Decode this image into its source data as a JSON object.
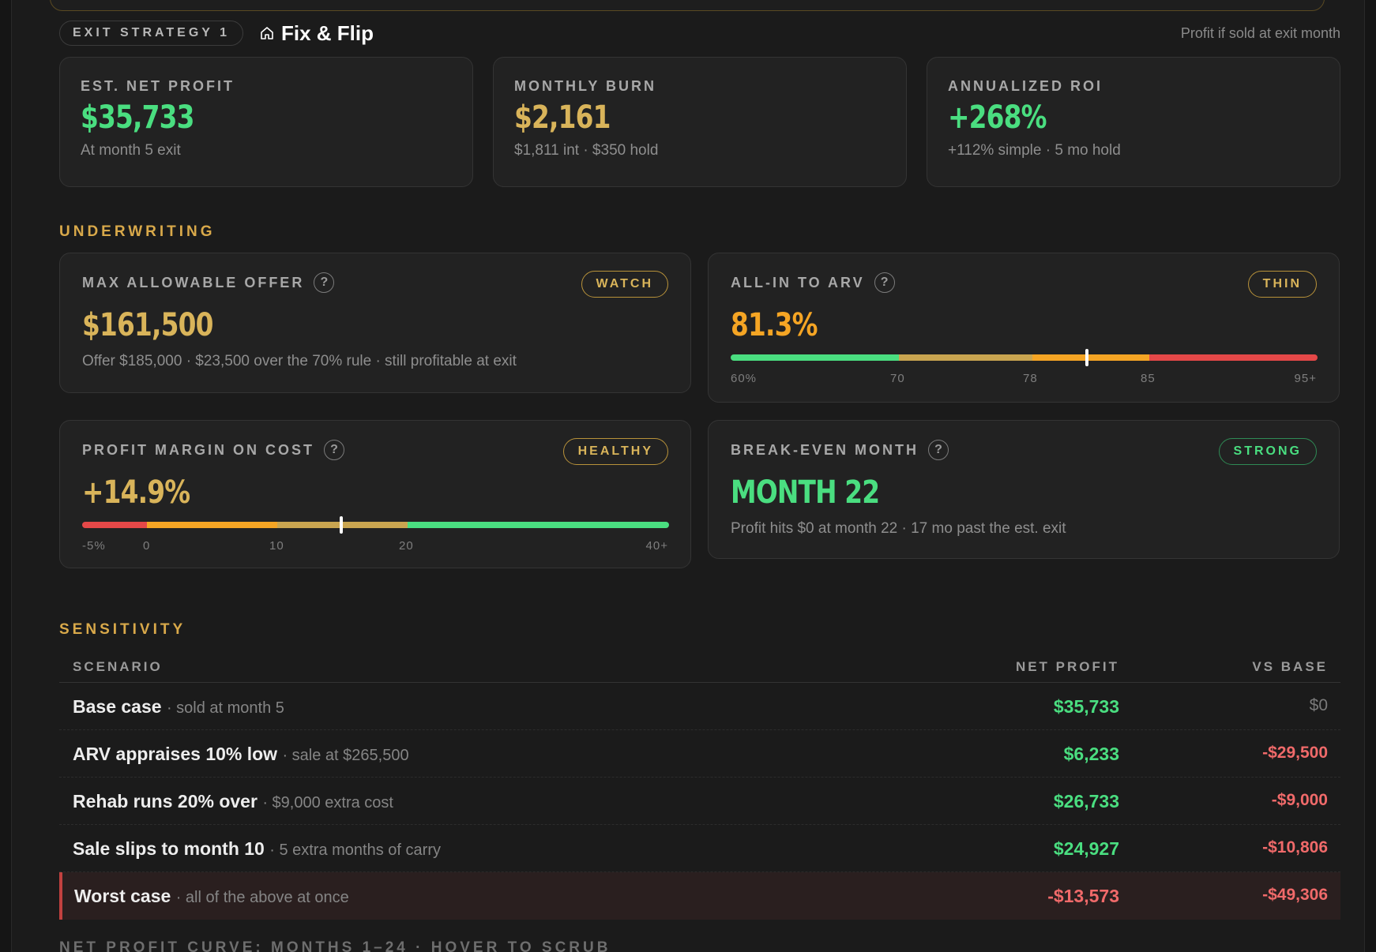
{
  "exit": {
    "pill": "EXIT STRATEGY 1",
    "title": "Fix & Flip",
    "note": "Profit if sold at exit month"
  },
  "stats": [
    {
      "label": "EST. NET PROFIT",
      "value": "$35,733",
      "sub": "At month 5 exit",
      "color": "#4ade80"
    },
    {
      "label": "MONTHLY BURN",
      "value": "$2,161",
      "sub": "$1,811 int · $350 hold",
      "color": "#d9b45a"
    },
    {
      "label": "ANNUALIZED ROI",
      "value": "+268%",
      "sub": "+112% simple · 5 mo hold",
      "color": "#4ade80"
    }
  ],
  "underwriting": {
    "title": "UNDERWRITING",
    "mao": {
      "label": "MAX ALLOWABLE OFFER",
      "badge": "WATCH",
      "value": "$161,500",
      "sub": "Offer $185,000 · $23,500 over the 70% rule · still profitable at exit"
    },
    "allin": {
      "label": "ALL-IN TO ARV",
      "badge": "THIN",
      "value": "81.3%",
      "gauge_value": 81.3,
      "ticks": [
        "60%",
        "70",
        "78",
        "85",
        "95+"
      ]
    },
    "margin": {
      "label": "PROFIT MARGIN ON COST",
      "badge": "HEALTHY",
      "value": "+14.9%",
      "gauge_value": 14.9,
      "ticks": [
        "-5%",
        "0",
        "10",
        "20",
        "40+"
      ]
    },
    "breakeven": {
      "label": "BREAK-EVEN MONTH",
      "badge": "STRONG",
      "value": "MONTH 22",
      "sub": "Profit hits $0 at month 22 · 17 mo past the est. exit"
    }
  },
  "sensitivity": {
    "title": "SENSITIVITY",
    "headers": {
      "scenario": "SCENARIO",
      "net_profit": "NET PROFIT",
      "vs_base": "VS BASE"
    },
    "rows": [
      {
        "name": "Base case",
        "desc": "· sold at month 5",
        "net_profit": "$35,733",
        "vs_base": "$0"
      },
      {
        "name": "ARV appraises 10% low",
        "desc": "· sale at $265,500",
        "net_profit": "$6,233",
        "vs_base": "-$29,500"
      },
      {
        "name": "Rehab runs 20% over",
        "desc": "· $9,000 extra cost",
        "net_profit": "$26,733",
        "vs_base": "-$9,000"
      },
      {
        "name": "Sale slips to month 10",
        "desc": "· 5 extra months of carry",
        "net_profit": "$24,927",
        "vs_base": "-$10,806"
      },
      {
        "name": "Worst case",
        "desc": "· all of the above at once",
        "net_profit": "-$13,573",
        "vs_base": "-$49,306"
      }
    ]
  },
  "footer": {
    "label": "NET PROFIT CURVE: MONTHS 1–24 · HOVER TO SCRUB"
  },
  "colors": {
    "green": "#4ade80",
    "gold": "#d9b45a",
    "orange": "#f5a524",
    "red": "#f06a6a",
    "section": "#d9a94a"
  }
}
